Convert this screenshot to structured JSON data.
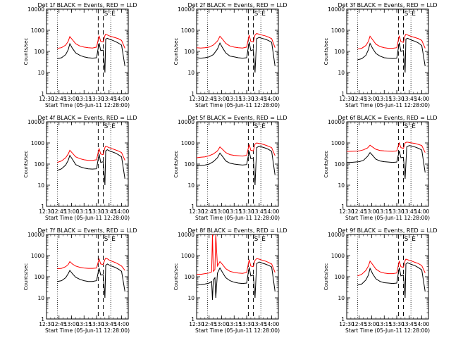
{
  "figure": {
    "xlabel": "Start Time (05-Jun-11 12:28:00)",
    "ylabel": "Counts/sec",
    "x_ticks": [
      "12:30",
      "12:45",
      "13:00",
      "13:15",
      "13:30",
      "13:45",
      "14:00"
    ],
    "y_ticks": [
      "1",
      "10",
      "100",
      "1000",
      "10000"
    ],
    "marker_labels": [
      "S",
      "E"
    ],
    "colors": {
      "events": "#000000",
      "lld": "#ff0000",
      "axes": "#000000"
    }
  },
  "chart_data": [
    {
      "type": "line",
      "title": "Det 1f BLACK = Events, RED = LLD",
      "xlabel": "Start Time (05-Jun-11 12:28:00)",
      "ylabel": "Counts/sec",
      "x_unit": "time",
      "xlim": [
        "12:30",
        "14:08"
      ],
      "ylim": [
        1,
        10000
      ],
      "yscale": "log",
      "dotted_lines": [
        "12:43",
        "13:47"
      ],
      "dashed_lines": [
        "13:32",
        "13:38"
      ],
      "markers": [
        {
          "label": "S",
          "x": "13:38"
        },
        {
          "label": "E",
          "x": "13:47"
        }
      ],
      "x": [
        "12:43",
        "12:48",
        "12:53",
        "12:56",
        "12:58",
        "13:01",
        "13:05",
        "13:10",
        "13:15",
        "13:20",
        "13:25",
        "13:30",
        "13:33",
        "13:35",
        "13:38",
        "13:40",
        "13:41",
        "13:43",
        "13:45",
        "13:48",
        "13:52",
        "13:56",
        "14:00",
        "14:04"
      ],
      "series": [
        {
          "name": "BLACK = Events",
          "values": [
            45,
            50,
            70,
            120,
            230,
            140,
            85,
            65,
            55,
            50,
            48,
            50,
            250,
            110,
            115,
            10,
            380,
            420,
            380,
            350,
            300,
            250,
            200,
            20
          ]
        },
        {
          "name": "RED = LLD",
          "values": [
            140,
            150,
            200,
            300,
            500,
            360,
            230,
            180,
            160,
            150,
            145,
            160,
            550,
            300,
            280,
            560,
            650,
            600,
            550,
            500,
            450,
            400,
            330,
            140
          ]
        }
      ]
    },
    {
      "type": "line",
      "title": "Det 2f BLACK = Events, RED = LLD",
      "xlabel": "Start Time (05-Jun-11 12:28:00)",
      "ylabel": "Counts/sec",
      "x_unit": "time",
      "xlim": [
        "12:30",
        "14:08"
      ],
      "ylim": [
        1,
        10000
      ],
      "yscale": "log",
      "dotted_lines": [
        "12:43",
        "13:47"
      ],
      "dashed_lines": [
        "13:32",
        "13:38"
      ],
      "markers": [
        {
          "label": "S",
          "x": "13:38"
        },
        {
          "label": "E",
          "x": "13:47"
        }
      ],
      "x": [
        "12:30",
        "12:35",
        "12:40",
        "12:45",
        "12:50",
        "12:55",
        "12:58",
        "13:01",
        "13:05",
        "13:10",
        "13:15",
        "13:20",
        "13:25",
        "13:30",
        "13:33",
        "13:35",
        "13:38",
        "13:40",
        "13:42",
        "13:45",
        "13:48",
        "13:52",
        "13:56",
        "14:00",
        "14:04"
      ],
      "series": [
        {
          "name": "BLACK = Events",
          "values": [
            50,
            48,
            50,
            55,
            70,
            130,
            250,
            150,
            85,
            60,
            55,
            50,
            48,
            50,
            280,
            110,
            120,
            10,
            400,
            460,
            420,
            380,
            330,
            270,
            20
          ]
        },
        {
          "name": "RED = LLD",
          "values": [
            150,
            145,
            150,
            160,
            200,
            310,
            520,
            380,
            240,
            180,
            160,
            150,
            145,
            160,
            600,
            300,
            280,
            600,
            700,
            650,
            600,
            550,
            480,
            400,
            150
          ]
        }
      ]
    },
    {
      "type": "line",
      "title": "Det 3f BLACK = Events, RED = LLD",
      "xlabel": "Start Time (05-Jun-11 12:28:00)",
      "ylabel": "Counts/sec",
      "x_unit": "time",
      "xlim": [
        "12:30",
        "14:08"
      ],
      "ylim": [
        1,
        10000
      ],
      "yscale": "log",
      "dotted_lines": [
        "12:43",
        "13:47"
      ],
      "dashed_lines": [
        "13:32",
        "13:38"
      ],
      "markers": [
        {
          "label": "S",
          "x": "13:38"
        },
        {
          "label": "E",
          "x": "13:47"
        }
      ],
      "x": [
        "12:43",
        "12:48",
        "12:53",
        "12:56",
        "12:58",
        "13:01",
        "13:05",
        "13:10",
        "13:15",
        "13:20",
        "13:25",
        "13:30",
        "13:33",
        "13:35",
        "13:38",
        "13:40",
        "13:41",
        "13:43",
        "13:45",
        "13:48",
        "13:52",
        "13:56",
        "14:00",
        "14:04"
      ],
      "series": [
        {
          "name": "BLACK = Events",
          "values": [
            40,
            45,
            65,
            120,
            240,
            140,
            80,
            60,
            50,
            48,
            46,
            48,
            260,
            100,
            110,
            10,
            380,
            420,
            380,
            340,
            300,
            250,
            190,
            20
          ]
        },
        {
          "name": "RED = LLD",
          "values": [
            130,
            140,
            190,
            300,
            520,
            360,
            220,
            170,
            150,
            140,
            140,
            150,
            550,
            290,
            270,
            560,
            650,
            600,
            560,
            500,
            450,
            400,
            330,
            140
          ]
        }
      ]
    },
    {
      "type": "line",
      "title": "Det 4f BLACK = Events, RED = LLD",
      "xlabel": "Start Time (05-Jun-11 12:28:00)",
      "ylabel": "Counts/sec",
      "x_unit": "time",
      "xlim": [
        "12:30",
        "14:08"
      ],
      "ylim": [
        1,
        10000
      ],
      "yscale": "log",
      "dotted_lines": [
        "12:43",
        "13:47"
      ],
      "dashed_lines": [
        "13:32",
        "13:38"
      ],
      "markers": [
        {
          "label": "S",
          "x": "13:38"
        },
        {
          "label": "E",
          "x": "13:47"
        }
      ],
      "x": [
        "12:43",
        "12:48",
        "12:53",
        "12:56",
        "12:58",
        "13:01",
        "13:05",
        "13:10",
        "13:15",
        "13:20",
        "13:25",
        "13:30",
        "13:33",
        "13:35",
        "13:38",
        "13:40",
        "13:41",
        "13:43",
        "13:45",
        "13:48",
        "13:52",
        "13:56",
        "14:00",
        "14:04"
      ],
      "series": [
        {
          "name": "BLACK = Events",
          "values": [
            50,
            60,
            90,
            150,
            260,
            170,
            95,
            75,
            65,
            60,
            58,
            60,
            300,
            120,
            130,
            10,
            420,
            480,
            430,
            390,
            340,
            280,
            220,
            20
          ]
        },
        {
          "name": "RED = LLD",
          "values": [
            120,
            140,
            200,
            300,
            450,
            330,
            220,
            180,
            160,
            150,
            150,
            160,
            550,
            300,
            280,
            600,
            700,
            650,
            600,
            550,
            480,
            420,
            350,
            150
          ]
        }
      ]
    },
    {
      "type": "line",
      "title": "Det 5f BLACK = Events, RED = LLD",
      "xlabel": "Start Time (05-Jun-11 12:28:00)",
      "ylabel": "Counts/sec",
      "x_unit": "time",
      "xlim": [
        "12:30",
        "14:08"
      ],
      "ylim": [
        1,
        10000
      ],
      "yscale": "log",
      "dotted_lines": [
        "12:43",
        "13:47"
      ],
      "dashed_lines": [
        "13:32",
        "13:38"
      ],
      "markers": [
        {
          "label": "S",
          "x": "13:38"
        },
        {
          "label": "E",
          "x": "13:47"
        }
      ],
      "x": [
        "12:30",
        "12:35",
        "12:40",
        "12:45",
        "12:50",
        "12:55",
        "12:58",
        "13:01",
        "13:05",
        "13:10",
        "13:15",
        "13:20",
        "13:25",
        "13:30",
        "13:33",
        "13:35",
        "13:38",
        "13:40",
        "13:42",
        "13:45",
        "13:48",
        "13:52",
        "13:56",
        "14:00",
        "14:04"
      ],
      "series": [
        {
          "name": "BLACK = Events",
          "values": [
            80,
            85,
            90,
            100,
            130,
            200,
            330,
            230,
            140,
            110,
            100,
            95,
            90,
            95,
            400,
            180,
            190,
            10,
            600,
            700,
            650,
            580,
            500,
            400,
            30
          ]
        },
        {
          "name": "RED = LLD",
          "values": [
            200,
            210,
            220,
            250,
            300,
            420,
            650,
            500,
            350,
            280,
            260,
            250,
            240,
            260,
            850,
            450,
            420,
            900,
            1000,
            950,
            900,
            800,
            700,
            600,
            250
          ]
        }
      ]
    },
    {
      "type": "line",
      "title": "Det 6f BLACK = Events, RED = LLD",
      "xlabel": "Start Time (05-Jun-11 12:28:00)",
      "ylabel": "Counts/sec",
      "x_unit": "time",
      "xlim": [
        "12:30",
        "14:08"
      ],
      "ylim": [
        1,
        10000
      ],
      "yscale": "log",
      "dotted_lines": [
        "12:43",
        "13:47"
      ],
      "dashed_lines": [
        "13:32",
        "13:38"
      ],
      "markers": [
        {
          "label": "S",
          "x": "13:38"
        },
        {
          "label": "E",
          "x": "13:47"
        }
      ],
      "x": [
        "12:30",
        "12:35",
        "12:40",
        "12:45",
        "12:50",
        "12:55",
        "12:58",
        "13:01",
        "13:05",
        "13:10",
        "13:15",
        "13:20",
        "13:25",
        "13:30",
        "13:33",
        "13:35",
        "13:38",
        "13:40",
        "13:42",
        "13:45",
        "13:48",
        "13:52",
        "13:56",
        "14:00",
        "14:04"
      ],
      "series": [
        {
          "name": "BLACK = Events",
          "values": [
            120,
            120,
            125,
            130,
            150,
            230,
            350,
            260,
            170,
            140,
            130,
            125,
            120,
            125,
            420,
            200,
            210,
            20,
            650,
            750,
            700,
            640,
            560,
            460,
            40
          ]
        },
        {
          "name": "RED = LLD",
          "values": [
            400,
            400,
            410,
            420,
            470,
            580,
            780,
            640,
            500,
            440,
            420,
            410,
            400,
            420,
            1000,
            600,
            560,
            1000,
            1100,
            1050,
            1000,
            950,
            850,
            750,
            350
          ]
        }
      ]
    },
    {
      "type": "line",
      "title": "Det 7f BLACK = Events, RED = LLD",
      "xlabel": "Start Time (05-Jun-11 12:28:00)",
      "ylabel": "Counts/sec",
      "x_unit": "time",
      "xlim": [
        "12:30",
        "14:08"
      ],
      "ylim": [
        1,
        10000
      ],
      "yscale": "log",
      "dotted_lines": [
        "12:43",
        "13:47"
      ],
      "dashed_lines": [
        "13:32",
        "13:38"
      ],
      "markers": [
        {
          "label": "S",
          "x": "13:38"
        },
        {
          "label": "E",
          "x": "13:47"
        }
      ],
      "x": [
        "12:43",
        "12:48",
        "12:53",
        "12:56",
        "12:58",
        "13:01",
        "13:05",
        "13:10",
        "13:15",
        "13:20",
        "13:25",
        "13:30",
        "13:33",
        "13:35",
        "13:38",
        "13:40",
        "13:41",
        "13:43",
        "13:45",
        "13:48",
        "13:52",
        "13:56",
        "14:00",
        "14:04"
      ],
      "series": [
        {
          "name": "BLACK = Events",
          "values": [
            60,
            65,
            90,
            140,
            200,
            140,
            95,
            75,
            65,
            60,
            60,
            65,
            260,
            120,
            125,
            10,
            350,
            400,
            360,
            320,
            280,
            230,
            180,
            20
          ]
        },
        {
          "name": "RED = LLD",
          "values": [
            240,
            250,
            300,
            380,
            520,
            400,
            320,
            280,
            260,
            250,
            250,
            260,
            700,
            400,
            380,
            650,
            750,
            700,
            620,
            550,
            480,
            400,
            320,
            200
          ]
        }
      ]
    },
    {
      "type": "line",
      "title": "Det 8f BLACK = Events, RED = LLD",
      "xlabel": "Start Time (05-Jun-11 12:28:00)",
      "ylabel": "Counts/sec",
      "x_unit": "time",
      "xlim": [
        "12:30",
        "14:08"
      ],
      "ylim": [
        1,
        10000
      ],
      "yscale": "log",
      "dotted_lines": [
        "12:43",
        "13:47"
      ],
      "dashed_lines": [
        "13:32",
        "13:38"
      ],
      "markers": [
        {
          "label": "S",
          "x": "13:38"
        },
        {
          "label": "E",
          "x": "13:47"
        }
      ],
      "x": [
        "12:30",
        "12:35",
        "12:40",
        "12:45",
        "12:48",
        "12:49",
        "12:50",
        "12:52",
        "12:53",
        "12:55",
        "12:58",
        "13:01",
        "13:05",
        "13:10",
        "13:15",
        "13:20",
        "13:25",
        "13:30",
        "13:33",
        "13:35",
        "13:38",
        "13:40",
        "13:42",
        "13:45",
        "13:48",
        "13:52",
        "13:56",
        "14:00",
        "14:04"
      ],
      "series": [
        {
          "name": "BLACK = Events",
          "values": [
            40,
            42,
            45,
            50,
            60,
            8,
            70,
            90,
            10,
            150,
            260,
            160,
            90,
            65,
            55,
            50,
            48,
            50,
            280,
            110,
            120,
            10,
            420,
            500,
            450,
            400,
            350,
            290,
            20
          ]
        },
        {
          "name": "RED = LLD",
          "values": [
            130,
            130,
            140,
            150,
            170,
            10000,
            180,
            220,
            10000,
            320,
            520,
            380,
            240,
            180,
            160,
            150,
            145,
            160,
            650,
            320,
            300,
            600,
            720,
            680,
            620,
            560,
            480,
            400,
            160
          ]
        }
      ]
    },
    {
      "type": "line",
      "title": "Det 9f BLACK = Events, RED = LLD",
      "xlabel": "Start Time (05-Jun-11 12:28:00)",
      "ylabel": "Counts/sec",
      "x_unit": "time",
      "xlim": [
        "12:30",
        "14:08"
      ],
      "ylim": [
        1,
        10000
      ],
      "yscale": "log",
      "dotted_lines": [
        "12:43",
        "13:47"
      ],
      "dashed_lines": [
        "13:32",
        "13:38"
      ],
      "markers": [
        {
          "label": "S",
          "x": "13:38"
        },
        {
          "label": "E",
          "x": "13:47"
        }
      ],
      "x": [
        "12:43",
        "12:48",
        "12:53",
        "12:56",
        "12:58",
        "13:01",
        "13:05",
        "13:10",
        "13:15",
        "13:20",
        "13:25",
        "13:30",
        "13:33",
        "13:35",
        "13:38",
        "13:40",
        "13:41",
        "13:43",
        "13:45",
        "13:48",
        "13:52",
        "13:56",
        "14:00",
        "14:04"
      ],
      "series": [
        {
          "name": "BLACK = Events",
          "values": [
            40,
            45,
            70,
            120,
            250,
            140,
            80,
            60,
            52,
            50,
            48,
            50,
            270,
            110,
            120,
            10,
            400,
            460,
            420,
            380,
            330,
            270,
            210,
            20
          ]
        },
        {
          "name": "RED = LLD",
          "values": [
            110,
            130,
            200,
            320,
            550,
            380,
            230,
            170,
            150,
            140,
            140,
            150,
            560,
            300,
            280,
            580,
            680,
            640,
            600,
            550,
            480,
            420,
            340,
            150
          ]
        }
      ]
    }
  ]
}
